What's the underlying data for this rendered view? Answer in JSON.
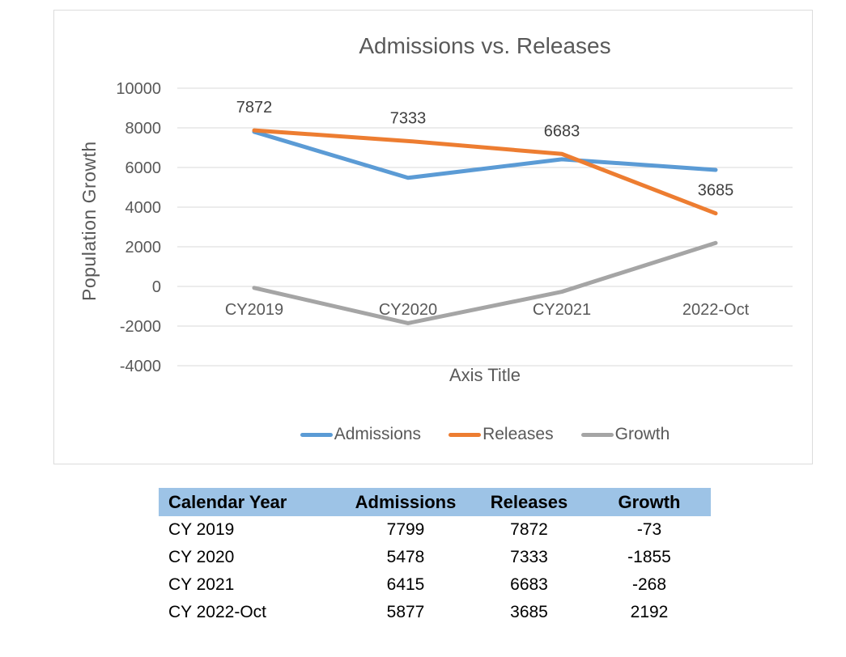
{
  "chart_data": {
    "type": "line",
    "title": "Admissions vs. Releases",
    "categories": [
      "CY2019",
      "CY2020",
      "CY2021",
      "2022-Oct"
    ],
    "series": [
      {
        "name": "Admissions",
        "color": "#5B9BD5",
        "values": [
          7799,
          5478,
          6415,
          5877
        ],
        "data_labels": false
      },
      {
        "name": "Releases",
        "color": "#ED7D31",
        "values": [
          7872,
          7333,
          6683,
          3685
        ],
        "data_labels": true
      },
      {
        "name": "Growth",
        "color": "#A5A5A5",
        "values": [
          -73,
          -1855,
          -268,
          2192
        ],
        "data_labels": false
      }
    ],
    "xlabel": "Axis Title",
    "ylabel": "Population Growth",
    "ylim": [
      -4000,
      10000
    ],
    "yticks": [
      10000,
      8000,
      6000,
      4000,
      2000,
      0,
      -2000,
      -4000
    ],
    "grid": true,
    "legend_position": "bottom",
    "colors": {
      "grid": "#D9D9D9",
      "axis_text": "#595959",
      "title": "#595959",
      "data_label": "#404040"
    }
  },
  "table": {
    "header_bg": "#9DC3E6",
    "headers": [
      "Calendar Year",
      "Admissions",
      "Releases",
      "Growth"
    ],
    "rows": [
      [
        "CY 2019",
        "7799",
        "7872",
        "-73"
      ],
      [
        "CY 2020",
        "5478",
        "7333",
        "-1855"
      ],
      [
        "CY 2021",
        "6415",
        "6683",
        "-268"
      ],
      [
        "CY 2022-Oct",
        "5877",
        "3685",
        "2192"
      ]
    ]
  }
}
